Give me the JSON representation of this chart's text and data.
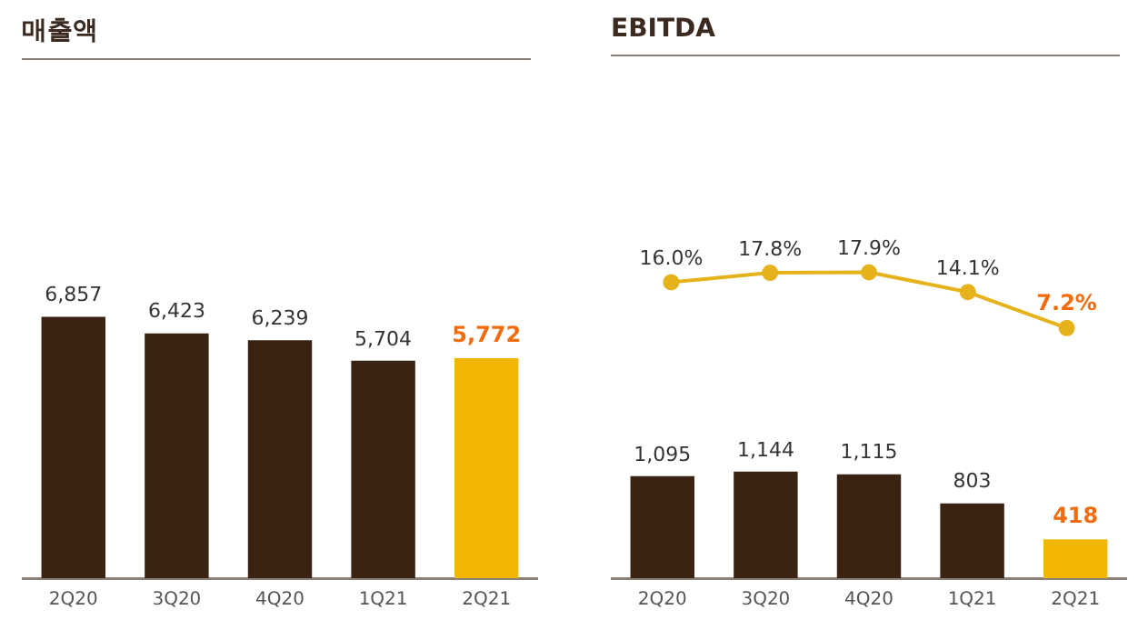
{
  "chart_data": [
    {
      "type": "bar",
      "title": "매출액",
      "categories": [
        "2Q20",
        "3Q20",
        "4Q20",
        "1Q21",
        "2Q21"
      ],
      "values": [
        6857,
        6423,
        6239,
        5704,
        5772
      ],
      "colors": [
        "#3a2312",
        "#3a2312",
        "#3a2312",
        "#3a2312",
        "#f2b705"
      ],
      "value_labels": [
        "6,857",
        "6,423",
        "6,239",
        "5,704",
        "5,772"
      ]
    },
    {
      "type": "line",
      "title": "EBITDA",
      "categories": [
        null,
        null,
        null,
        null,
        null
      ],
      "tick_labels": false,
      "color": "#e6b21c",
      "marker": "circle",
      "values": [
        16.0,
        17.8,
        17.9,
        14.1,
        7.2
      ],
      "value_labels": [
        "16.0%",
        "17.8%",
        "17.9%",
        "14.1%",
        "7.2%"
      ]
    },
    {
      "type": "bar",
      "categories": [
        "2Q20",
        "3Q20",
        "4Q20",
        "1Q21",
        "2Q21"
      ],
      "values": [
        1095,
        1144,
        1115,
        803,
        418
      ],
      "colors": [
        "#3a2312",
        "#3a2312",
        "#3a2312",
        "#3a2312",
        "#f2b705"
      ],
      "value_labels": [
        "1,095",
        "1,144",
        "1,115",
        "803",
        "418"
      ]
    }
  ]
}
